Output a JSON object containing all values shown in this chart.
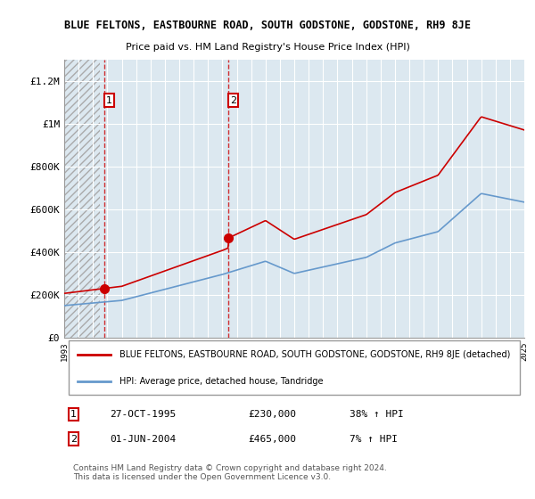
{
  "title": "BLUE FELTONS, EASTBOURNE ROAD, SOUTH GODSTONE, GODSTONE, RH9 8JE",
  "subtitle": "Price paid vs. HM Land Registry's House Price Index (HPI)",
  "ylabel": "",
  "ylim": [
    0,
    1300000
  ],
  "yticks": [
    0,
    200000,
    400000,
    600000,
    800000,
    1000000,
    1200000
  ],
  "ytick_labels": [
    "£0",
    "£200K",
    "£400K",
    "£600K",
    "£800K",
    "£1M",
    "£1.2M"
  ],
  "x_start_year": 1993,
  "x_end_year": 2025,
  "sale1_date": "27-OCT-1995",
  "sale1_price": 230000,
  "sale1_label": "38% ↑ HPI",
  "sale2_date": "01-JUN-2004",
  "sale2_price": 465000,
  "sale2_label": "7% ↑ HPI",
  "sale1_x": 1995.82,
  "sale2_x": 2004.42,
  "red_line_color": "#cc0000",
  "blue_line_color": "#6699cc",
  "hatch_color": "#cccccc",
  "legend_label_red": "BLUE FELTONS, EASTBOURNE ROAD, SOUTH GODSTONE, GODSTONE, RH9 8JE (detached)",
  "legend_label_blue": "HPI: Average price, detached house, Tandridge",
  "footer_text": "Contains HM Land Registry data © Crown copyright and database right 2024.\nThis data is licensed under the Open Government Licence v3.0.",
  "bg_color": "#ffffff",
  "plot_bg_color": "#f0f0f0",
  "hatch_bg_color": "#dce8f0"
}
